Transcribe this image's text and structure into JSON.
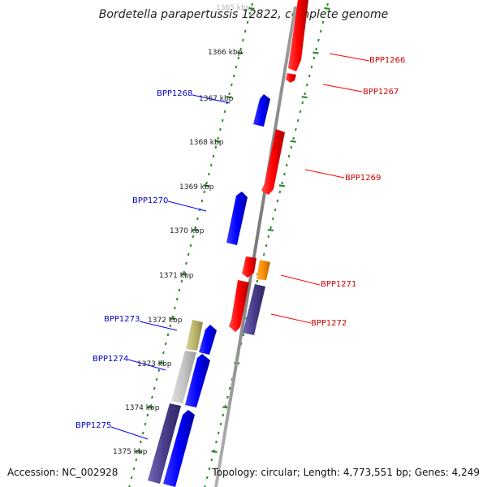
{
  "title": "Bordetella parapertussis 12822, complete genome",
  "footer": {
    "accession": "Accession: NC_002928",
    "summary": "Topology: circular; Length: 4,773,551 bp; Genes: 4,249"
  },
  "colors": {
    "forward_gene": "#ff0000",
    "reverse_gene": "#0000ff",
    "other_forward": "#ff8c00",
    "reverse_pseudo": "#483d8b",
    "forward_pseudo": "#483d8b",
    "tick_marks": "#2e8b2e",
    "backbone": "#8a8a8a",
    "rna": "#bdbdbd",
    "rna_khaki": "#bdb76b"
  },
  "ticks": [
    {
      "kbp": 1365,
      "label": "1365 kbp"
    },
    {
      "kbp": 1366,
      "label": "1366 kbp"
    },
    {
      "kbp": 1367,
      "label": "1367 kbp"
    },
    {
      "kbp": 1368,
      "label": "1368 kbp"
    },
    {
      "kbp": 1369,
      "label": "1369 kbp"
    },
    {
      "kbp": 1370,
      "label": "1370 kbp"
    },
    {
      "kbp": 1371,
      "label": "1371 kbp"
    },
    {
      "kbp": 1372,
      "label": "1372 kbp"
    },
    {
      "kbp": 1373,
      "label": "1373 kbp"
    },
    {
      "kbp": 1374,
      "label": "1374 kbp"
    },
    {
      "kbp": 1375,
      "label": "1375 kbp"
    }
  ],
  "gene_labels": {
    "BPP1266": "BPP1266",
    "BPP1267": "BPP1267",
    "BPP1268": "BPP1268",
    "BPP1269": "BPP1269",
    "BPP1270": "BPP1270",
    "BPP1271": "BPP1271",
    "BPP1272": "BPP1272",
    "BPP1273": "BPP1273",
    "BPP1274": "BPP1274",
    "BPP1275": "BPP1275"
  }
}
